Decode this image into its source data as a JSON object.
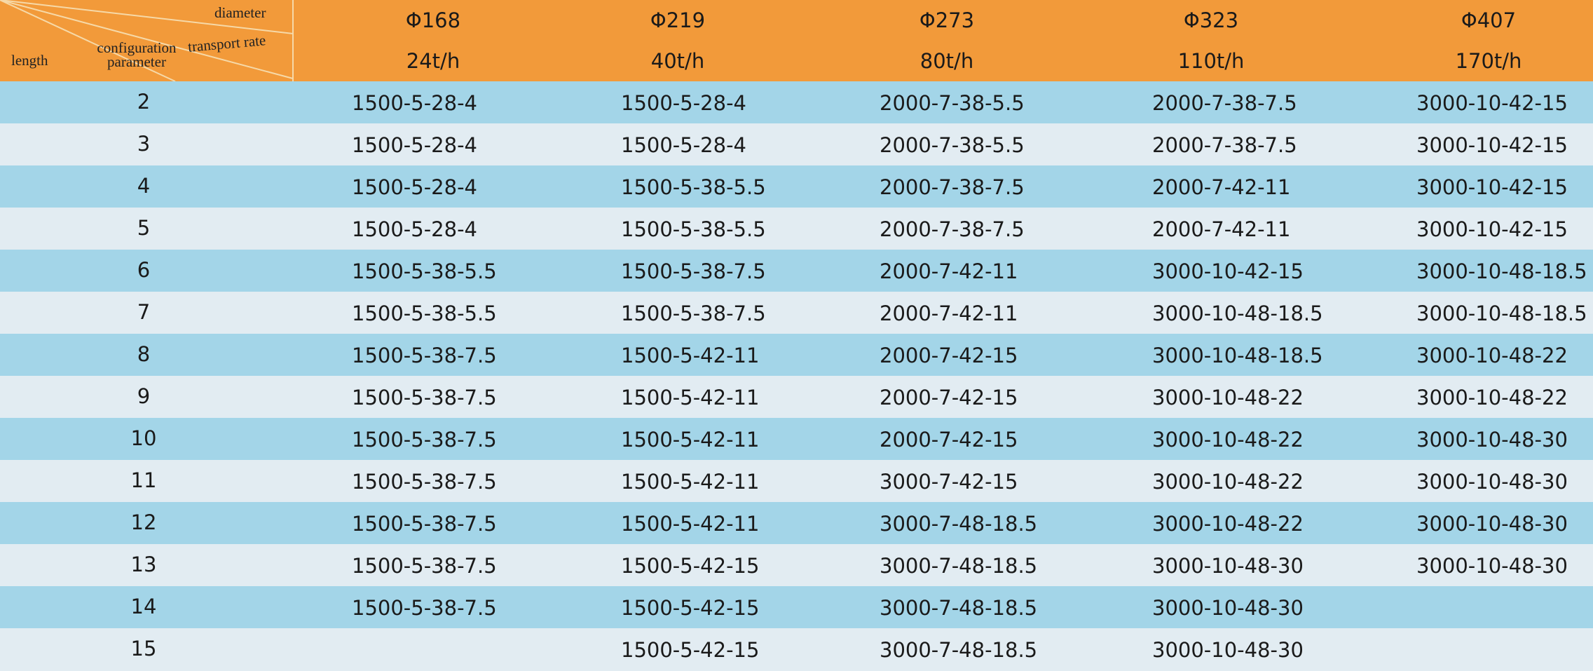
{
  "header": {
    "diameter": "diameter",
    "transport_rate": "transport rate",
    "configuration_parameter": "configuration parameter",
    "length": "length",
    "columns": [
      {
        "diameter": "Φ168",
        "rate": "24t/h"
      },
      {
        "diameter": "Φ219",
        "rate": "40t/h"
      },
      {
        "diameter": "Φ273",
        "rate": "80t/h"
      },
      {
        "diameter": "Φ323",
        "rate": "110t/h"
      },
      {
        "diameter": "Φ407",
        "rate": "170t/h"
      }
    ]
  },
  "rows": [
    {
      "length": "2",
      "cells": [
        "1500-5-28-4",
        "1500-5-28-4",
        "2000-7-38-5.5",
        "2000-7-38-7.5",
        "3000-10-42-15"
      ]
    },
    {
      "length": "3",
      "cells": [
        "1500-5-28-4",
        "1500-5-28-4",
        "2000-7-38-5.5",
        "2000-7-38-7.5",
        "3000-10-42-15"
      ]
    },
    {
      "length": "4",
      "cells": [
        "1500-5-28-4",
        "1500-5-38-5.5",
        "2000-7-38-7.5",
        "2000-7-42-11",
        "3000-10-42-15"
      ]
    },
    {
      "length": "5",
      "cells": [
        "1500-5-28-4",
        "1500-5-38-5.5",
        "2000-7-38-7.5",
        "2000-7-42-11",
        "3000-10-42-15"
      ]
    },
    {
      "length": "6",
      "cells": [
        "1500-5-38-5.5",
        "1500-5-38-7.5",
        "2000-7-42-11",
        "3000-10-42-15",
        "3000-10-48-18.5"
      ]
    },
    {
      "length": "7",
      "cells": [
        "1500-5-38-5.5",
        "1500-5-38-7.5",
        "2000-7-42-11",
        "3000-10-48-18.5",
        "3000-10-48-18.5"
      ]
    },
    {
      "length": "8",
      "cells": [
        "1500-5-38-7.5",
        "1500-5-42-11",
        "2000-7-42-15",
        "3000-10-48-18.5",
        "3000-10-48-22"
      ]
    },
    {
      "length": "9",
      "cells": [
        "1500-5-38-7.5",
        "1500-5-42-11",
        "2000-7-42-15",
        "3000-10-48-22",
        "3000-10-48-22"
      ]
    },
    {
      "length": "10",
      "cells": [
        "1500-5-38-7.5",
        "1500-5-42-11",
        "2000-7-42-15",
        "3000-10-48-22",
        "3000-10-48-30"
      ]
    },
    {
      "length": "11",
      "cells": [
        "1500-5-38-7.5",
        "1500-5-42-11",
        "3000-7-42-15",
        "3000-10-48-22",
        "3000-10-48-30"
      ]
    },
    {
      "length": "12",
      "cells": [
        "1500-5-38-7.5",
        "1500-5-42-11",
        "3000-7-48-18.5",
        "3000-10-48-22",
        "3000-10-48-30"
      ]
    },
    {
      "length": "13",
      "cells": [
        "1500-5-38-7.5",
        "1500-5-42-15",
        "3000-7-48-18.5",
        "3000-10-48-30",
        "3000-10-48-30"
      ]
    },
    {
      "length": "14",
      "cells": [
        "1500-5-38-7.5",
        "1500-5-42-15",
        "3000-7-48-18.5",
        "3000-10-48-30",
        null
      ]
    },
    {
      "length": "15",
      "cells": [
        null,
        "1500-5-42-15",
        "3000-7-48-18.5",
        "3000-10-48-30",
        null
      ]
    }
  ]
}
